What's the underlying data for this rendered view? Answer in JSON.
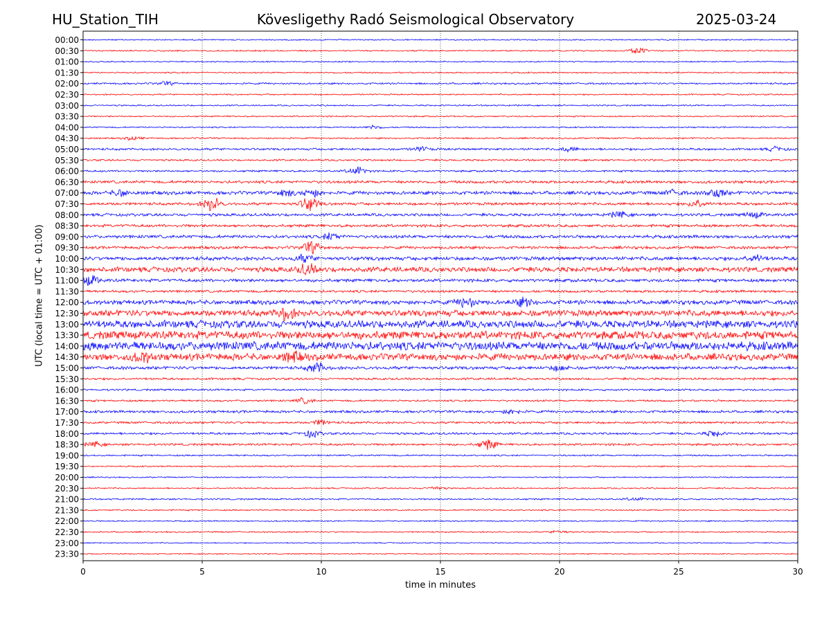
{
  "header": {
    "station": "HU_Station_TIH",
    "observatory": "Kövesligethy Radó Seismological Observatory",
    "date": "2025-03-24"
  },
  "chart_data": {
    "type": "line",
    "title": "Kövesligethy Radó Seismological Observatory",
    "xlabel": "time in minutes",
    "ylabel": "UTC (local time = UTC + 01:00)",
    "xlim": [
      0,
      30
    ],
    "xticks": [
      0,
      5,
      10,
      15,
      20,
      25,
      30
    ],
    "grid": "vertical dotted",
    "colors": {
      "even_rows": "#0000ff",
      "odd_rows": "#ff0000"
    },
    "rows": [
      {
        "label": "00:00",
        "noise": 0.2,
        "events": []
      },
      {
        "label": "00:30",
        "noise": 0.22,
        "events": [
          [
            23.3,
            0.9
          ]
        ]
      },
      {
        "label": "01:00",
        "noise": 0.2,
        "events": []
      },
      {
        "label": "01:30",
        "noise": 0.22,
        "events": []
      },
      {
        "label": "02:00",
        "noise": 0.28,
        "events": [
          [
            3.5,
            0.5
          ]
        ]
      },
      {
        "label": "02:30",
        "noise": 0.22,
        "events": []
      },
      {
        "label": "03:00",
        "noise": 0.22,
        "events": []
      },
      {
        "label": "03:30",
        "noise": 0.22,
        "events": []
      },
      {
        "label": "04:00",
        "noise": 0.22,
        "events": [
          [
            12.2,
            0.6
          ]
        ]
      },
      {
        "label": "04:30",
        "noise": 0.25,
        "events": [
          [
            2.1,
            0.5
          ]
        ]
      },
      {
        "label": "05:00",
        "noise": 0.35,
        "events": [
          [
            14.2,
            0.6
          ],
          [
            20.4,
            0.6
          ],
          [
            29.1,
            0.6
          ]
        ]
      },
      {
        "label": "05:30",
        "noise": 0.3,
        "events": []
      },
      {
        "label": "06:00",
        "noise": 0.3,
        "events": [
          [
            11.5,
            1.4
          ]
        ]
      },
      {
        "label": "06:30",
        "noise": 0.45,
        "events": []
      },
      {
        "label": "07:00",
        "noise": 0.55,
        "events": [
          [
            1.6,
            1.0
          ],
          [
            8.5,
            1.0
          ],
          [
            9.6,
            1.2
          ],
          [
            24.8,
            0.8
          ],
          [
            26.6,
            1.4
          ]
        ]
      },
      {
        "label": "07:30",
        "noise": 0.45,
        "events": [
          [
            5.4,
            2.2
          ],
          [
            9.5,
            2.2
          ],
          [
            25.8,
            1.2
          ]
        ]
      },
      {
        "label": "08:00",
        "noise": 0.45,
        "events": [
          [
            22.5,
            0.9
          ],
          [
            28.2,
            0.9
          ]
        ]
      },
      {
        "label": "08:30",
        "noise": 0.45,
        "events": []
      },
      {
        "label": "09:00",
        "noise": 0.5,
        "events": [
          [
            10.4,
            1.0
          ]
        ]
      },
      {
        "label": "09:30",
        "noise": 0.45,
        "events": [
          [
            9.6,
            1.8
          ]
        ]
      },
      {
        "label": "10:00",
        "noise": 0.6,
        "events": [
          [
            9.3,
            1.0
          ],
          [
            28.2,
            1.0
          ]
        ]
      },
      {
        "label": "10:30",
        "noise": 0.8,
        "events": [
          [
            9.4,
            1.5
          ]
        ]
      },
      {
        "label": "11:00",
        "noise": 0.5,
        "events": [
          [
            0.3,
            1.6
          ]
        ]
      },
      {
        "label": "11:30",
        "noise": 0.4,
        "events": []
      },
      {
        "label": "12:00",
        "noise": 0.7,
        "events": [
          [
            16.1,
            1.5
          ],
          [
            18.5,
            1.1
          ]
        ]
      },
      {
        "label": "12:30",
        "noise": 1.0,
        "events": [
          [
            8.5,
            1.7
          ]
        ]
      },
      {
        "label": "13:00",
        "noise": 1.2,
        "events": []
      },
      {
        "label": "13:30",
        "noise": 1.3,
        "events": []
      },
      {
        "label": "14:00",
        "noise": 1.4,
        "events": []
      },
      {
        "label": "14:30",
        "noise": 1.1,
        "events": [
          [
            2.5,
            1.3
          ],
          [
            8.8,
            1.3
          ]
        ]
      },
      {
        "label": "15:00",
        "noise": 0.5,
        "events": [
          [
            9.8,
            1.6
          ],
          [
            20.0,
            0.8
          ]
        ]
      },
      {
        "label": "15:30",
        "noise": 0.35,
        "events": []
      },
      {
        "label": "16:00",
        "noise": 0.3,
        "events": []
      },
      {
        "label": "16:30",
        "noise": 0.3,
        "events": [
          [
            9.3,
            0.8
          ]
        ]
      },
      {
        "label": "17:00",
        "noise": 0.4,
        "events": [
          [
            18.0,
            0.7
          ]
        ]
      },
      {
        "label": "17:30",
        "noise": 0.35,
        "events": [
          [
            10.0,
            0.8
          ]
        ]
      },
      {
        "label": "18:00",
        "noise": 0.35,
        "events": [
          [
            9.6,
            1.0
          ],
          [
            26.5,
            0.9
          ]
        ]
      },
      {
        "label": "18:30",
        "noise": 0.35,
        "events": [
          [
            0.5,
            0.7
          ],
          [
            17.0,
            1.6
          ]
        ]
      },
      {
        "label": "19:00",
        "noise": 0.25,
        "events": []
      },
      {
        "label": "19:30",
        "noise": 0.22,
        "events": []
      },
      {
        "label": "20:00",
        "noise": 0.2,
        "events": []
      },
      {
        "label": "20:30",
        "noise": 0.22,
        "events": [
          [
            14.8,
            0.5
          ]
        ]
      },
      {
        "label": "21:00",
        "noise": 0.25,
        "events": [
          [
            23.2,
            0.5
          ]
        ]
      },
      {
        "label": "21:30",
        "noise": 0.22,
        "events": []
      },
      {
        "label": "22:00",
        "noise": 0.2,
        "events": []
      },
      {
        "label": "22:30",
        "noise": 0.22,
        "events": [
          [
            20.0,
            0.5
          ]
        ]
      },
      {
        "label": "23:00",
        "noise": 0.18,
        "events": []
      },
      {
        "label": "23:30",
        "noise": 0.18,
        "events": []
      }
    ]
  }
}
